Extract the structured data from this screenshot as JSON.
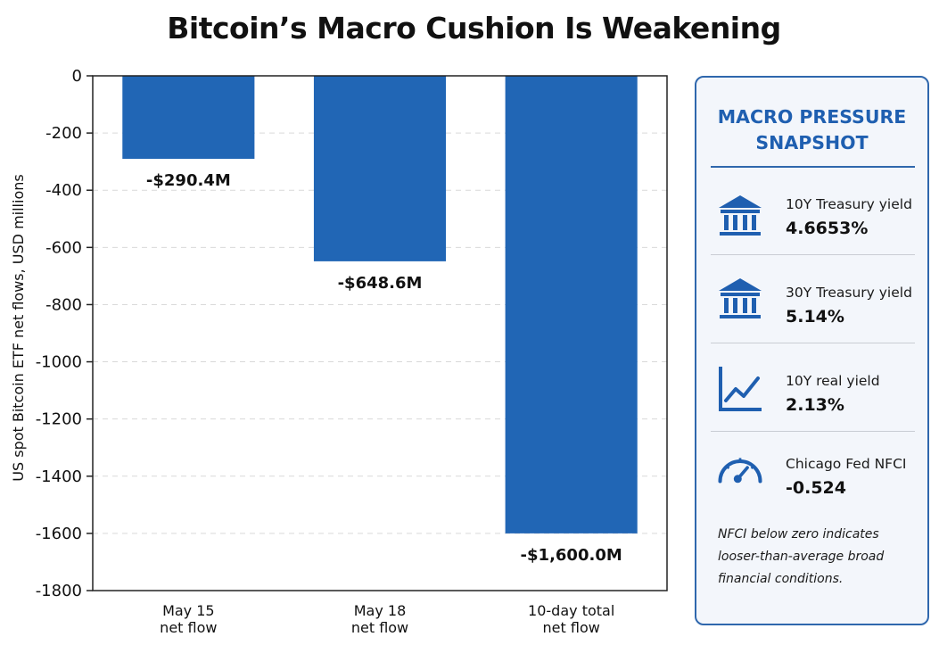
{
  "chart_data": {
    "type": "bar",
    "title": "Bitcoin’s Macro Cushion Is Weakening",
    "ylabel": "US spot Bitcoin ETF net flows, USD millions",
    "xlabel": "",
    "categories": [
      "May 15\nnet flow",
      "May 18\nnet flow",
      "10-day total\nnet flow"
    ],
    "values": [
      -290.4,
      -648.6,
      -1600.0
    ],
    "data_labels": [
      "-$290.4M",
      "-$648.6M",
      "-$1,600.0M"
    ],
    "ylim": [
      -1800,
      0
    ],
    "yticks": [
      0,
      -200,
      -400,
      -600,
      -800,
      -1000,
      -1200,
      -1400,
      -1600,
      -1800
    ],
    "grid": "horizontal dashed",
    "bar_color": "#2166b5"
  },
  "panel": {
    "title": "MACRO PRESSURE\nSNAPSHOT",
    "accent_color": "#1f5fb0",
    "metrics": [
      {
        "icon": "bank-icon",
        "label": "10Y Treasury yield",
        "value": "4.6653%"
      },
      {
        "icon": "bank-icon",
        "label": "30Y Treasury yield",
        "value": "5.14%"
      },
      {
        "icon": "line-chart-icon",
        "label": "10Y real yield",
        "value": "2.13%"
      },
      {
        "icon": "gauge-icon",
        "label": "Chicago Fed NFCI",
        "value": "-0.524"
      }
    ],
    "note": "NFCI below zero indicates looser-than-average broad financial conditions."
  }
}
